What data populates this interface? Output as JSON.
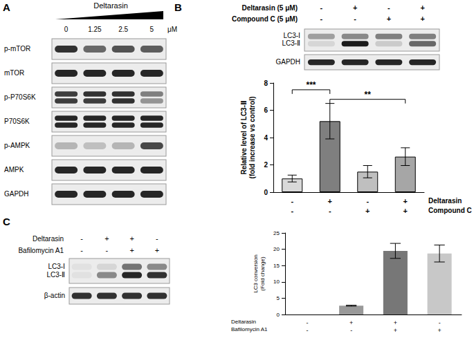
{
  "panels": {
    "A": {
      "label": "A",
      "treatment": "Deltarasin",
      "doses": [
        0,
        1.25,
        2.5,
        5
      ],
      "unit": "μM",
      "blots": [
        {
          "names": [
            "p-mTOR"
          ],
          "bands": [
            [
              0.85
            ],
            [
              0.6
            ],
            [
              0.7
            ],
            [
              0.65
            ]
          ]
        },
        {
          "names": [
            "mTOR"
          ],
          "bands": [
            [
              0.9
            ],
            [
              0.9
            ],
            [
              0.9
            ],
            [
              0.9
            ]
          ]
        },
        {
          "names": [
            "p-P70S6K"
          ],
          "bands": [
            [
              0.8,
              0.8
            ],
            [
              0.85,
              0.8
            ],
            [
              0.85,
              0.85
            ],
            [
              0.5,
              0.4
            ]
          ]
        },
        {
          "names": [
            "P70S6K"
          ],
          "bands": [
            [
              0.9,
              0.9
            ],
            [
              0.9,
              0.9
            ],
            [
              0.9,
              0.9
            ],
            [
              0.9,
              0.9
            ]
          ]
        },
        {
          "names": [
            "p-AMPK"
          ],
          "bands": [
            [
              0.25
            ],
            [
              0.2
            ],
            [
              0.25
            ],
            [
              0.75
            ]
          ]
        },
        {
          "names": [
            "AMPK"
          ],
          "bands": [
            [
              0.9
            ],
            [
              0.9
            ],
            [
              0.9
            ],
            [
              0.9
            ]
          ]
        },
        {
          "names": [
            "GAPDH"
          ],
          "bands": [
            [
              0.9
            ],
            [
              0.9
            ],
            [
              0.9
            ],
            [
              0.9
            ]
          ]
        }
      ]
    },
    "B": {
      "label": "B",
      "treatments": [
        {
          "label": "Deltarasin (5 μM)",
          "signs": [
            "-",
            "+",
            "-",
            "+"
          ]
        },
        {
          "label": "Compound C (5 μM)",
          "signs": [
            "-",
            "-",
            "+",
            "+"
          ]
        }
      ],
      "blots": [
        {
          "names": [
            "LC3-Ⅰ",
            "LC3-Ⅱ"
          ],
          "bands": [
            [
              0.35,
              0.1
            ],
            [
              0.45,
              0.95
            ],
            [
              0.5,
              0.15
            ],
            [
              0.5,
              0.6
            ]
          ]
        },
        {
          "names": [
            "GAPDH"
          ],
          "bands": [
            [
              0.9
            ],
            [
              0.9
            ],
            [
              0.9
            ],
            [
              0.9
            ]
          ]
        }
      ]
    },
    "C": {
      "label": "C",
      "treatments": [
        {
          "label": "Deltarasin",
          "signs": [
            "-",
            "+",
            "+",
            "-"
          ]
        },
        {
          "label": "Bafilomycin A1",
          "signs": [
            "-",
            "-",
            "+",
            "+"
          ]
        }
      ],
      "blots": [
        {
          "names": [
            "LC3-Ⅰ",
            "LC3-Ⅱ"
          ],
          "bands": [
            [
              0.05,
              0.05
            ],
            [
              0.1,
              0.45
            ],
            [
              0.55,
              0.9
            ],
            [
              0.45,
              0.85
            ]
          ]
        },
        {
          "names": [
            "β-actin"
          ],
          "bands": [
            [
              0.85
            ],
            [
              0.85
            ],
            [
              0.85
            ],
            [
              0.85
            ]
          ]
        }
      ]
    }
  },
  "chart_data": [
    {
      "type": "bar",
      "categories": [
        null,
        null,
        null,
        null
      ],
      "values": [
        1,
        5.2,
        1.5,
        2.6
      ],
      "errors": [
        0.25,
        1.3,
        0.45,
        0.65
      ],
      "colors": [
        "#d9d9d9",
        "#7f7f7f",
        "#bfbfbf",
        "#a6a6a6"
      ],
      "ylabel": "Relative level of LC3-Ⅱ\n(fold increase vs control)",
      "ylim": [
        0,
        8
      ],
      "yticks": [
        0,
        2,
        4,
        6,
        8
      ],
      "grid": false,
      "conditions": [
        {
          "label": "Deltarasin",
          "signs": [
            "-",
            "+",
            "-",
            "+"
          ]
        },
        {
          "label": "Compound C",
          "signs": [
            "-",
            "-",
            "+",
            "+"
          ]
        }
      ],
      "annotations": [
        {
          "text": "***",
          "from": 0,
          "to": 1,
          "y": 7.5
        },
        {
          "text": "**",
          "from": 1,
          "to": 3,
          "y": 6.8
        }
      ]
    },
    {
      "type": "bar",
      "categories": [
        null,
        null,
        null,
        null
      ],
      "values": [
        0,
        2.7,
        19.5,
        18.7
      ],
      "errors": [
        0,
        0.15,
        2.3,
        2.6
      ],
      "colors": [
        "#cccccc",
        "#999999",
        "#777777",
        "#c8c8c8"
      ],
      "ylabel": "LC3 conversion\n(Fold change)",
      "ylim": [
        0,
        25
      ],
      "yticks": [
        0,
        5,
        10,
        15,
        20,
        25
      ],
      "grid": false,
      "conditions": [
        {
          "label": "Deltarasin",
          "signs": [
            "-",
            "+",
            "+",
            "-"
          ]
        },
        {
          "label": "Bafilomycin A1",
          "signs": [
            "-",
            "-",
            "+",
            "+"
          ]
        }
      ]
    }
  ]
}
